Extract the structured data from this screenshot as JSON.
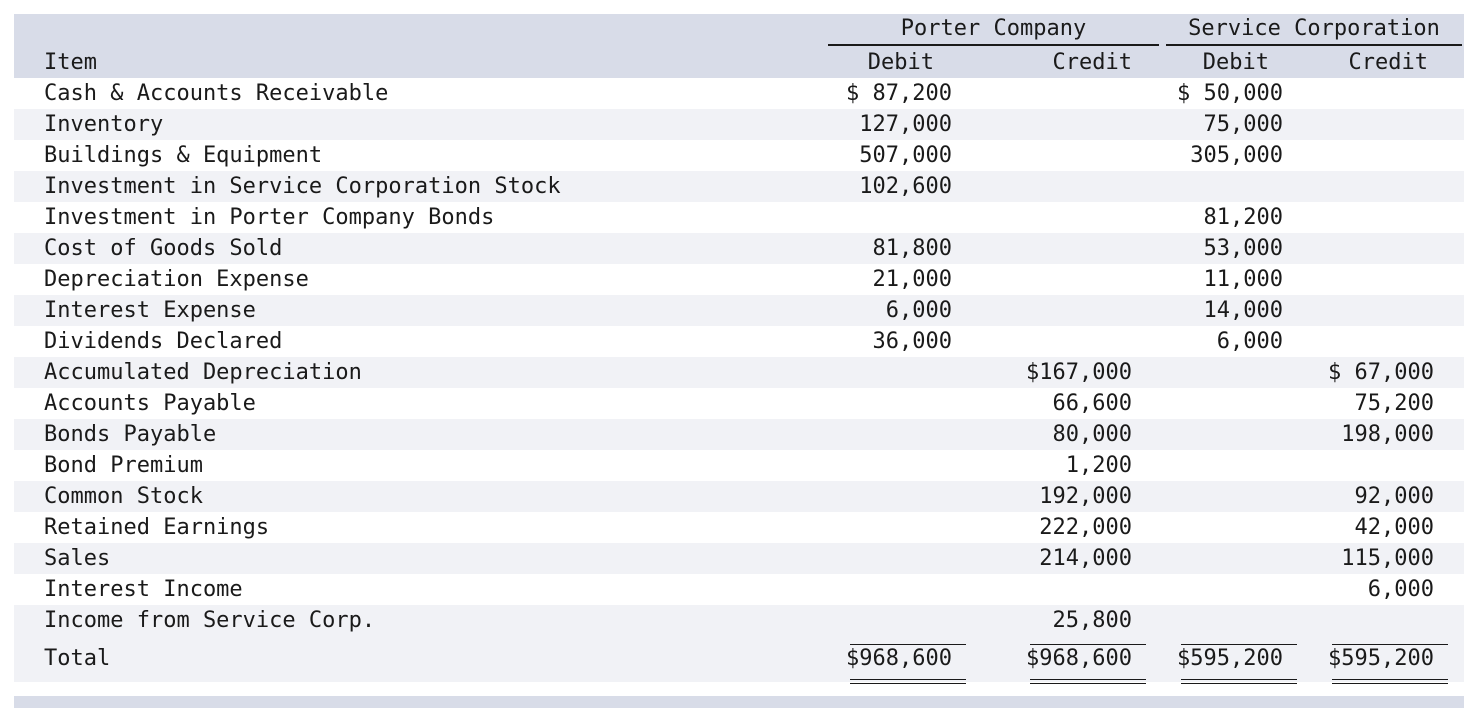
{
  "header": {
    "group_porter": "Porter Company",
    "group_service": "Service Corporation",
    "col_item": "Item",
    "col_debit_1": "Debit",
    "col_credit_1": "Credit",
    "col_debit_2": "Debit",
    "col_credit_2": "Credit"
  },
  "rows": [
    {
      "item": "Cash & Accounts Receivable",
      "pd": "$ 87,200",
      "pc": "",
      "sd": "$ 50,000",
      "sc": ""
    },
    {
      "item": "Inventory",
      "pd": "127,000",
      "pc": "",
      "sd": "75,000",
      "sc": ""
    },
    {
      "item": "Buildings & Equipment",
      "pd": "507,000",
      "pc": "",
      "sd": "305,000",
      "sc": ""
    },
    {
      "item": "Investment in Service Corporation Stock",
      "pd": "102,600",
      "pc": "",
      "sd": "",
      "sc": ""
    },
    {
      "item": "Investment in Porter Company Bonds",
      "pd": "",
      "pc": "",
      "sd": "81,200",
      "sc": ""
    },
    {
      "item": "Cost of Goods Sold",
      "pd": "81,800",
      "pc": "",
      "sd": "53,000",
      "sc": ""
    },
    {
      "item": "Depreciation Expense",
      "pd": "21,000",
      "pc": "",
      "sd": "11,000",
      "sc": ""
    },
    {
      "item": "Interest Expense",
      "pd": "6,000",
      "pc": "",
      "sd": "14,000",
      "sc": ""
    },
    {
      "item": "Dividends Declared",
      "pd": "36,000",
      "pc": "",
      "sd": "6,000",
      "sc": ""
    },
    {
      "item": "Accumulated Depreciation",
      "pd": "",
      "pc": "$167,000",
      "sd": "",
      "sc": "$ 67,000"
    },
    {
      "item": "Accounts Payable",
      "pd": "",
      "pc": "66,600",
      "sd": "",
      "sc": "75,200"
    },
    {
      "item": "Bonds Payable",
      "pd": "",
      "pc": "80,000",
      "sd": "",
      "sc": "198,000"
    },
    {
      "item": "Bond Premium",
      "pd": "",
      "pc": "1,200",
      "sd": "",
      "sc": ""
    },
    {
      "item": "Common Stock",
      "pd": "",
      "pc": "192,000",
      "sd": "",
      "sc": "92,000"
    },
    {
      "item": "Retained Earnings",
      "pd": "",
      "pc": "222,000",
      "sd": "",
      "sc": "42,000"
    },
    {
      "item": "Sales",
      "pd": "",
      "pc": "214,000",
      "sd": "",
      "sc": "115,000"
    },
    {
      "item": "Interest Income",
      "pd": "",
      "pc": "",
      "sd": "",
      "sc": "6,000"
    },
    {
      "item": "Income from Service Corp.",
      "pd": "",
      "pc": "25,800",
      "sd": "",
      "sc": ""
    }
  ],
  "total": {
    "item": "Total",
    "pd": "$968,600",
    "pc": "$968,600",
    "sd": "$595,200",
    "sc": "$595,200"
  }
}
